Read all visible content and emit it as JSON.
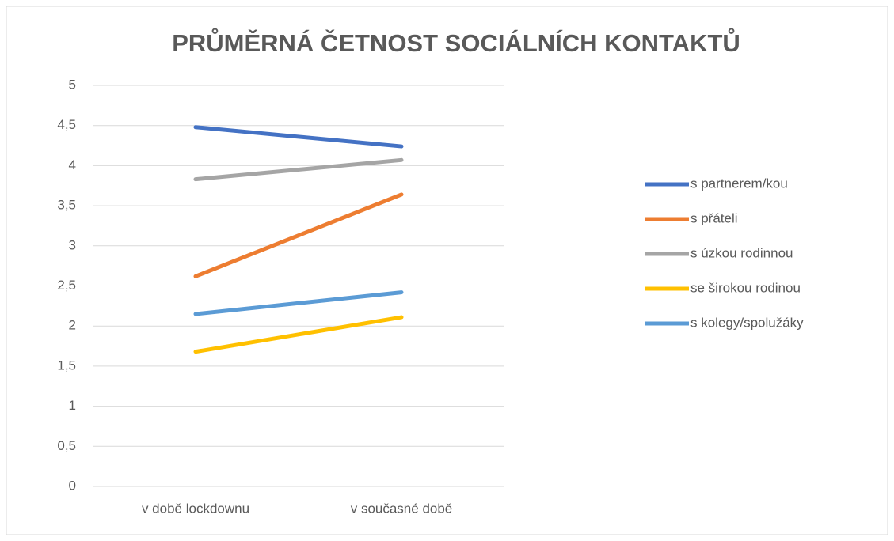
{
  "chart_data": {
    "type": "line",
    "title": "PRŮMĚRNÁ ČETNOST SOCIÁLNÍCH KONTAKTŮ",
    "categories": [
      "v době lockdownu",
      "v současné době"
    ],
    "series": [
      {
        "name": "s partnerem/kou",
        "color": "#4472c4",
        "values": [
          4.48,
          4.24
        ]
      },
      {
        "name": "s přáteli",
        "color": "#ed7d31",
        "values": [
          2.62,
          3.64
        ]
      },
      {
        "name": "s úzkou rodinnou",
        "color": "#a5a5a5",
        "values": [
          3.83,
          4.07
        ]
      },
      {
        "name": "se širokou rodinou",
        "color": "#ffc000",
        "values": [
          1.68,
          2.11
        ]
      },
      {
        "name": "s kolegy/spolužáky",
        "color": "#5b9bd5",
        "values": [
          2.15,
          2.42
        ]
      }
    ],
    "ylim": [
      0,
      5
    ],
    "yticks": [
      0,
      {
        "value": 0.5,
        "label": "0,5"
      },
      1,
      {
        "value": 1.5,
        "label": "1,5"
      },
      2,
      {
        "value": 2.5,
        "label": "2,5"
      },
      3,
      {
        "value": 3.5,
        "label": "3,5"
      },
      4,
      {
        "value": 4.5,
        "label": "4,5"
      },
      5
    ],
    "grid": true,
    "legend": "right"
  }
}
